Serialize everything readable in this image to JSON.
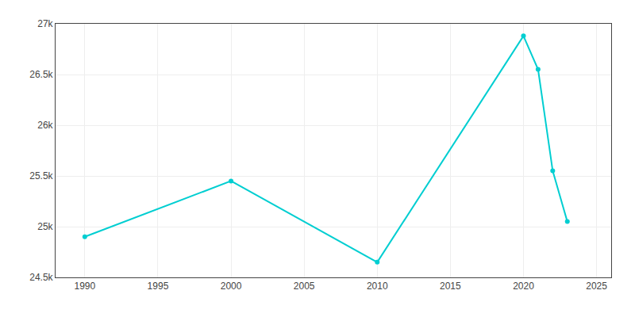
{
  "chart_data": {
    "type": "line",
    "x": [
      1990,
      2000,
      2010,
      2020,
      2021,
      2022,
      2023
    ],
    "series": [
      {
        "values": [
          24900,
          25450,
          24650,
          26880,
          26550,
          25550,
          25050
        ],
        "color": "#00CED1",
        "marker": "circle",
        "line_style": "solid"
      }
    ],
    "xlim": [
      1988,
      2026
    ],
    "xticks": [
      1990,
      1995,
      2000,
      2005,
      2010,
      2015,
      2020,
      2025
    ],
    "ylim": [
      24500,
      27000
    ],
    "yticks": [
      {
        "value": 24500,
        "label": "24.5k"
      },
      {
        "value": 25000,
        "label": "25k"
      },
      {
        "value": 25500,
        "label": "25.5k"
      },
      {
        "value": 26000,
        "label": "26k"
      },
      {
        "value": 26500,
        "label": "26.5k"
      },
      {
        "value": 27000,
        "label": "27k"
      }
    ],
    "grid": true
  }
}
